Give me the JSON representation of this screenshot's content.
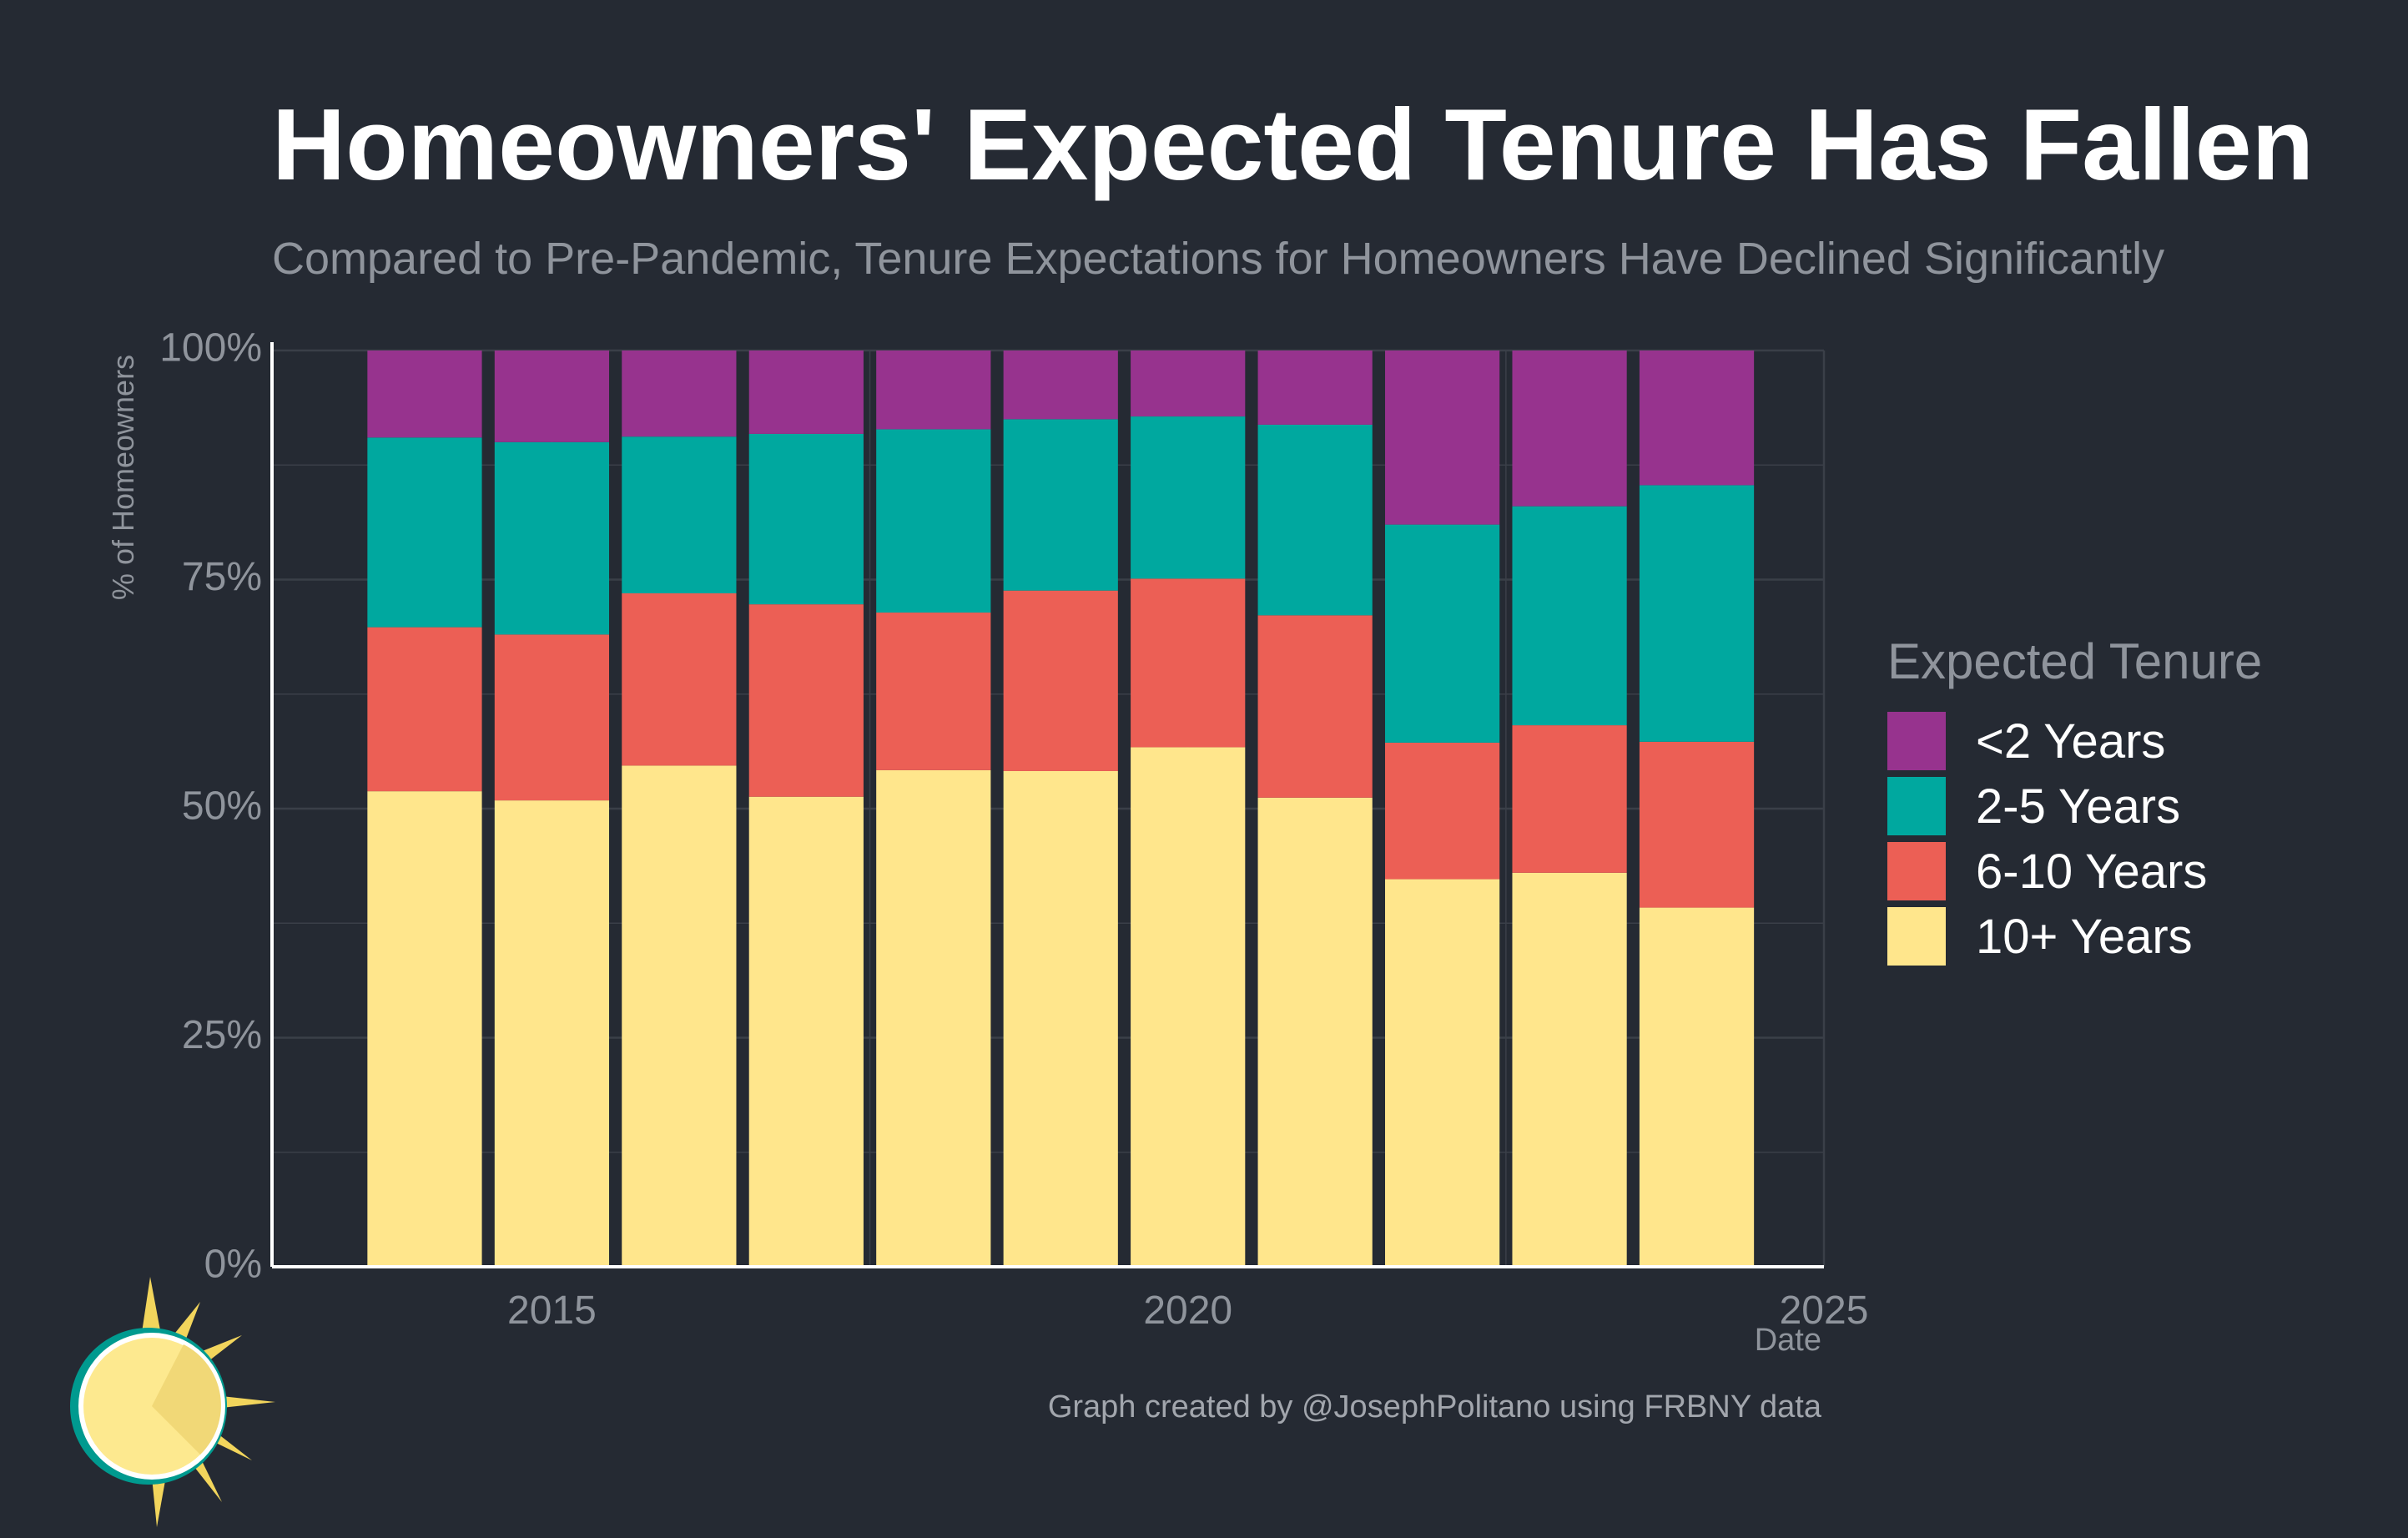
{
  "title": "Homeowners' Expected Tenure Has Fallen",
  "subtitle": "Compared to Pre-Pandemic, Tenure Expectations for Homeowners Have Declined Significantly",
  "caption": "Graph created by @JosephPolitano using FRBNY data",
  "colors": {
    "background": "#252a33",
    "grid": "#3a3f48",
    "axis": "#ffffff",
    "tick_text": "#8f949c",
    "lt2": "#97338e",
    "y2_5": "#00a89f",
    "y6_10": "#ec5f55",
    "y10plus": "#ffe68c"
  },
  "legend": {
    "title": "Expected Tenure",
    "items": [
      {
        "label": "<2 Years",
        "color": "#97338e"
      },
      {
        "label": "2-5 Years",
        "color": "#00a89f"
      },
      {
        "label": "6-10 Years",
        "color": "#ec5f55"
      },
      {
        "label": "10+ Years",
        "color": "#ffe68c"
      }
    ]
  },
  "chart_data": {
    "type": "bar",
    "stacked": true,
    "xlabel": "Date",
    "ylabel": "% of Homeowners",
    "x": [
      2014,
      2015,
      2016,
      2017,
      2018,
      2019,
      2020,
      2021,
      2022,
      2023,
      2024
    ],
    "xlim": [
      2012.8,
      2025
    ],
    "ylim": [
      0,
      100
    ],
    "x_ticks": [
      2015,
      2020,
      2025
    ],
    "y_ticks": [
      0,
      25,
      50,
      75,
      100
    ],
    "y_tick_labels": [
      "0%",
      "25%",
      "50%",
      "75%",
      "100%"
    ],
    "series": [
      {
        "name": "10+ Years",
        "color": "#ffe68c",
        "values": [
          51.9,
          50.9,
          54.7,
          51.3,
          54.2,
          54.1,
          56.7,
          51.2,
          42.3,
          43.0,
          39.2
        ]
      },
      {
        "name": "6-10 Years",
        "color": "#ec5f55",
        "values": [
          17.9,
          18.1,
          18.8,
          21.0,
          17.2,
          19.7,
          18.4,
          19.9,
          14.9,
          16.1,
          18.1
        ]
      },
      {
        "name": "2-5 Years",
        "color": "#00a89f",
        "values": [
          20.7,
          21.0,
          17.1,
          18.6,
          20.0,
          18.7,
          17.7,
          20.8,
          23.8,
          23.9,
          28.0
        ]
      },
      {
        "name": "<2 Years",
        "color": "#97338e",
        "values": [
          9.5,
          10.0,
          9.4,
          9.1,
          8.6,
          7.5,
          7.2,
          8.1,
          19.0,
          17.0,
          14.7
        ]
      }
    ],
    "grid": true,
    "legend_position": "right"
  }
}
